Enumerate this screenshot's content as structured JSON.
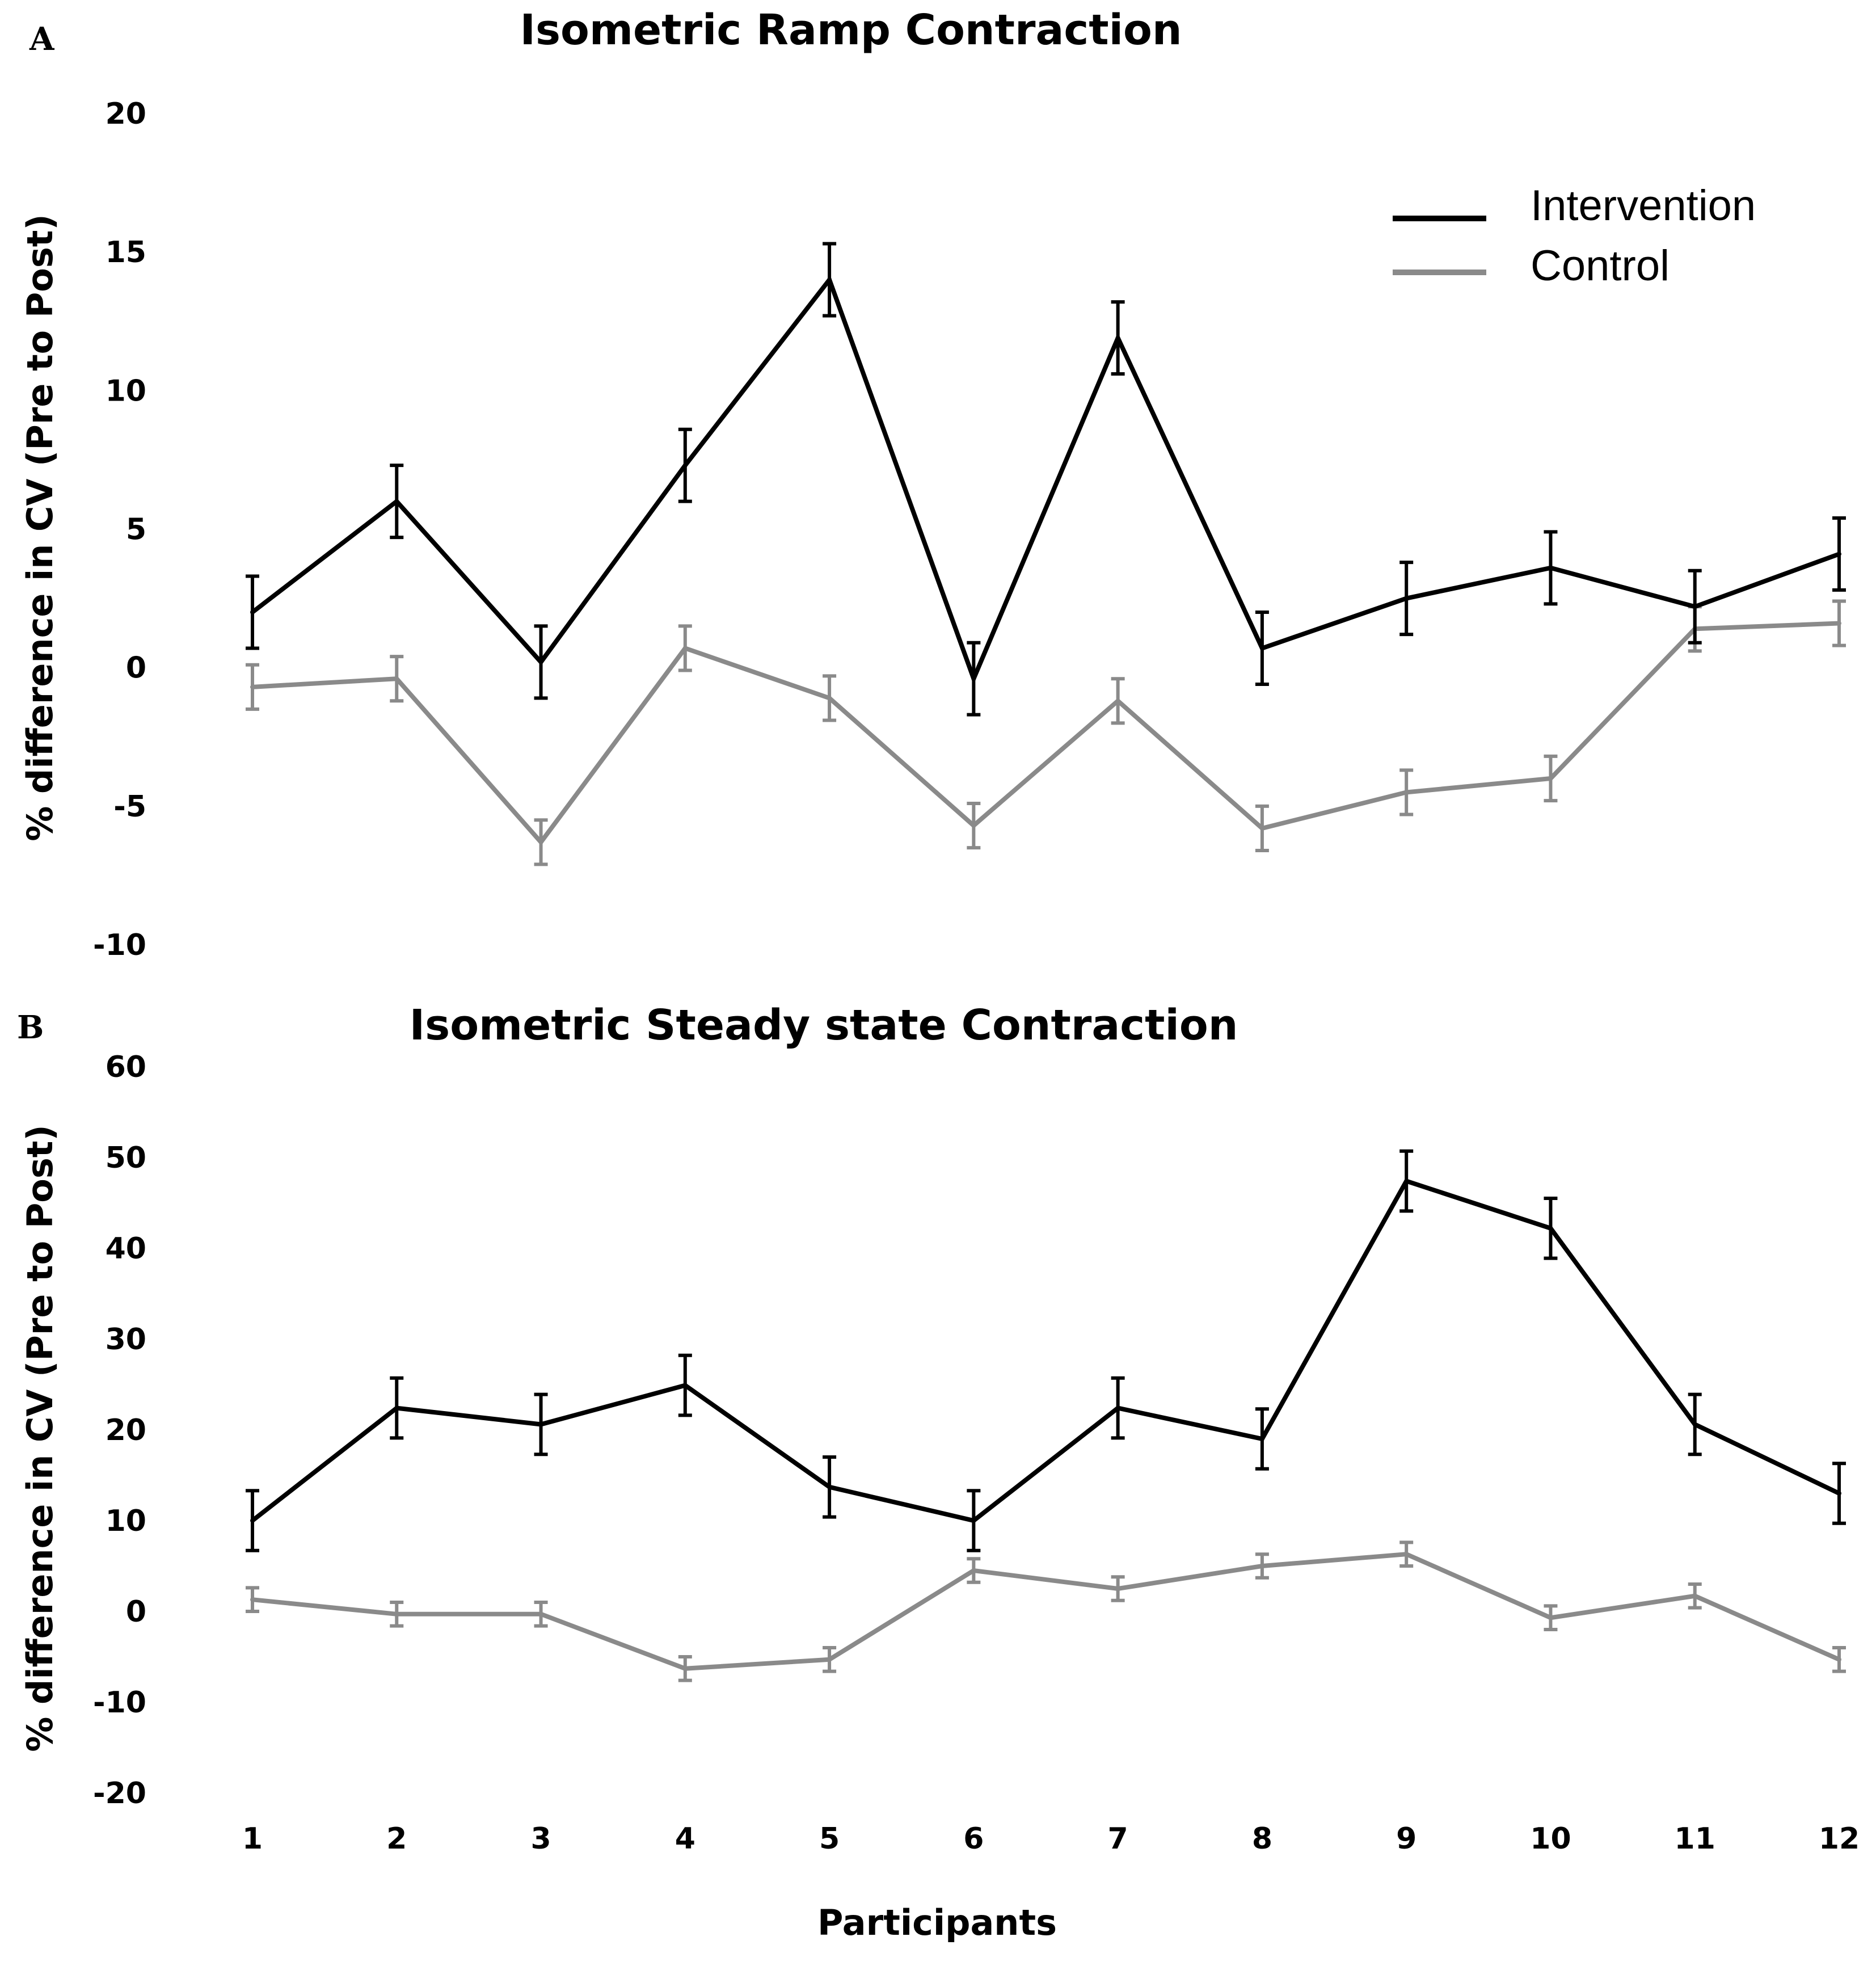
{
  "colors": {
    "intervention": "#000000",
    "control": "#8a8a8a"
  },
  "legend": [
    {
      "key": "intervention",
      "label": "Intervention"
    },
    {
      "key": "control",
      "label": "Control"
    }
  ],
  "shared_xlabel": "Participants",
  "chart_data": [
    {
      "panel": "A",
      "type": "line",
      "title": "Isometric Ramp Contraction",
      "ylabel": "% difference in CV  (Pre to Post)",
      "ylim": [
        -10,
        20
      ],
      "yticks": [
        20,
        15,
        10,
        5,
        0,
        -5,
        -10
      ],
      "x": [
        1,
        2,
        3,
        4,
        5,
        6,
        7,
        8,
        9,
        10,
        11,
        12
      ],
      "grid": false,
      "legend_position": "top-right",
      "series": [
        {
          "key": "intervention",
          "name": "Intervention",
          "values": [
            2.0,
            6.0,
            0.2,
            7.3,
            14.0,
            -0.4,
            11.9,
            0.7,
            2.5,
            3.6,
            2.2,
            4.1
          ],
          "error": [
            1.3,
            1.3,
            1.3,
            1.3,
            1.3,
            1.3,
            1.3,
            1.3,
            1.3,
            1.3,
            1.3,
            1.3
          ]
        },
        {
          "key": "control",
          "name": "Control",
          "values": [
            -0.7,
            -0.4,
            -6.3,
            0.7,
            -1.1,
            -5.7,
            -1.2,
            -5.8,
            -4.5,
            -4.0,
            1.4,
            1.6
          ],
          "error": [
            0.8,
            0.8,
            0.8,
            0.8,
            0.8,
            0.8,
            0.8,
            0.8,
            0.8,
            0.8,
            0.8,
            0.8
          ]
        }
      ]
    },
    {
      "panel": "B",
      "type": "line",
      "title": "Isometric Steady state Contraction",
      "ylabel": "% difference in CV  (Pre to Post)",
      "xlabel": "Participants",
      "ylim": [
        -20,
        60
      ],
      "yticks": [
        60,
        50,
        40,
        30,
        20,
        10,
        0,
        -10,
        -20
      ],
      "x": [
        1,
        2,
        3,
        4,
        5,
        6,
        7,
        8,
        9,
        10,
        11,
        12
      ],
      "grid": false,
      "series": [
        {
          "key": "intervention",
          "name": "Intervention",
          "values": [
            10.0,
            22.4,
            20.6,
            24.9,
            13.7,
            10.0,
            22.4,
            19.0,
            47.4,
            42.2,
            20.6,
            13.0
          ],
          "error": [
            3.3,
            3.3,
            3.3,
            3.3,
            3.3,
            3.3,
            3.3,
            3.3,
            3.3,
            3.3,
            3.3,
            3.3
          ]
        },
        {
          "key": "control",
          "name": "Control",
          "values": [
            1.3,
            -0.3,
            -0.3,
            -6.3,
            -5.3,
            4.5,
            2.5,
            5.0,
            6.3,
            -0.7,
            1.7,
            -5.3
          ],
          "error": [
            1.3,
            1.3,
            1.3,
            1.3,
            1.3,
            1.3,
            1.3,
            1.3,
            1.3,
            1.3,
            1.3,
            1.3
          ]
        }
      ]
    }
  ]
}
